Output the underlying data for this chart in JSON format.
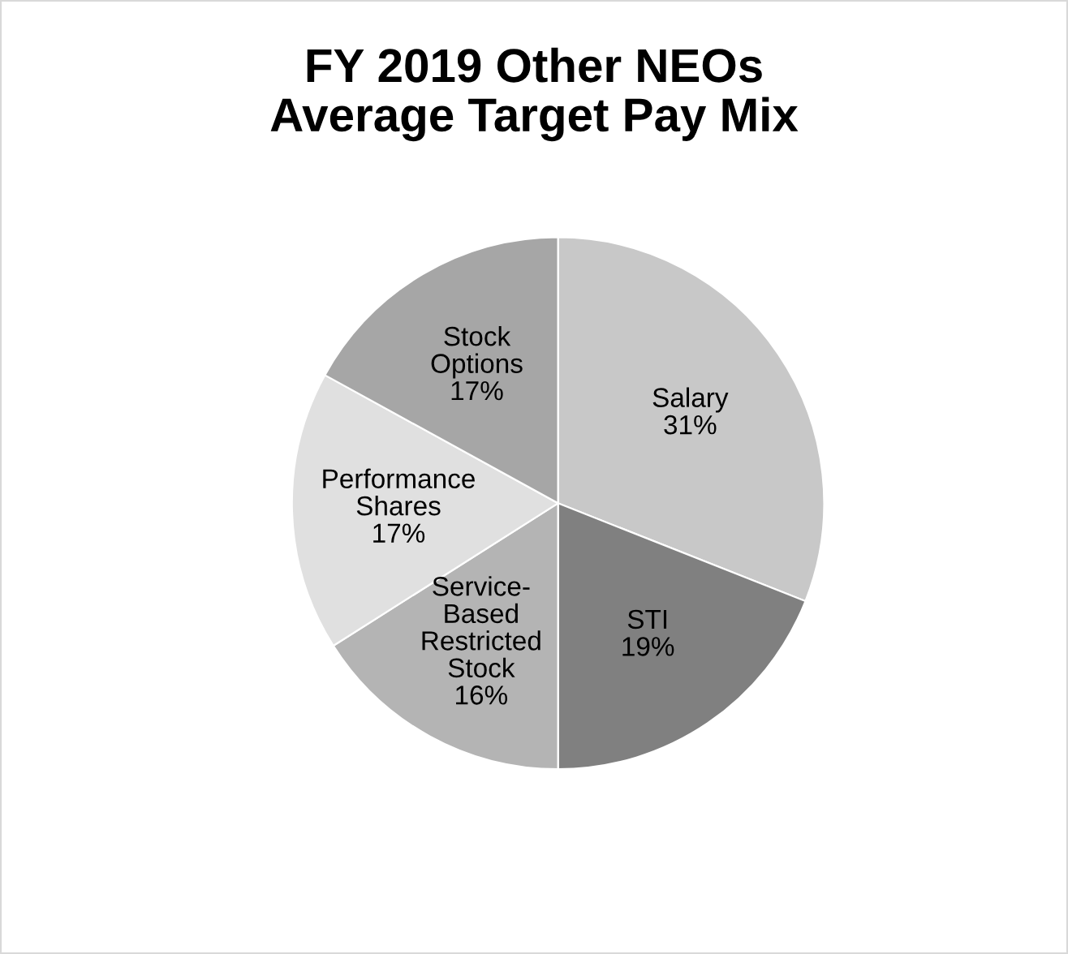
{
  "chart_data": {
    "type": "pie",
    "title": "FY 2019 Other NEOs\nAverage Target Pay Mix",
    "categories": [
      "Salary",
      "STI",
      "Service-\nBased\nRestricted\nStock",
      "Performance\nShares",
      "Stock\nOptions"
    ],
    "values": [
      31,
      19,
      16,
      17,
      17
    ],
    "value_labels": [
      "31%",
      "19%",
      "16%",
      "17%",
      "17%"
    ],
    "colors": [
      "#c8c8c8",
      "#808080",
      "#b4b4b4",
      "#e0e0e0",
      "#a6a6a6"
    ],
    "legend": false
  }
}
